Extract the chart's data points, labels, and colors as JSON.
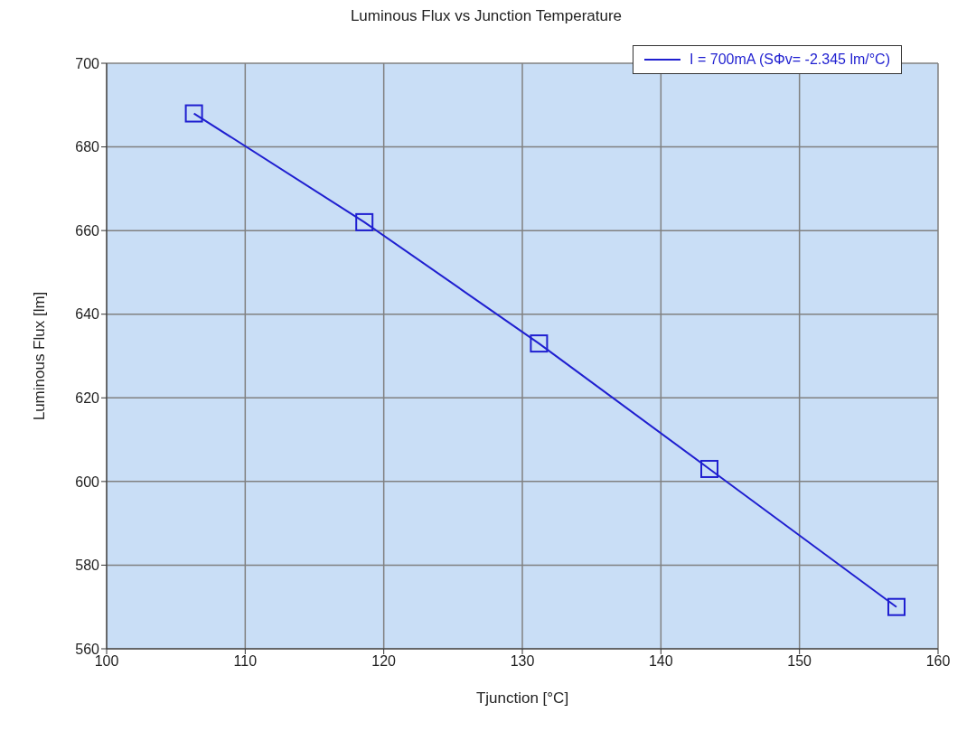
{
  "chart_data": {
    "type": "line",
    "title": "Luminous Flux vs Junction Temperature",
    "xlabel": "Tjunction [°C]",
    "ylabel": "Luminous Flux [lm]",
    "x": [
      106.3,
      118.6,
      131.2,
      143.5,
      157
    ],
    "series": [
      {
        "name": "I = 700mA (SΦv= -2.345 lm/°C)",
        "color": "#1f1fd0",
        "values": [
          688,
          662,
          633,
          603,
          570
        ]
      }
    ],
    "xlim": [
      100,
      160
    ],
    "xticks": [
      100,
      110,
      120,
      130,
      140,
      150,
      160
    ],
    "ylim": [
      560,
      700
    ],
    "yticks": [
      560,
      580,
      600,
      620,
      640,
      660,
      680,
      700
    ],
    "grid": true,
    "legend": "top right",
    "marker": "square",
    "line_style": "solid"
  }
}
